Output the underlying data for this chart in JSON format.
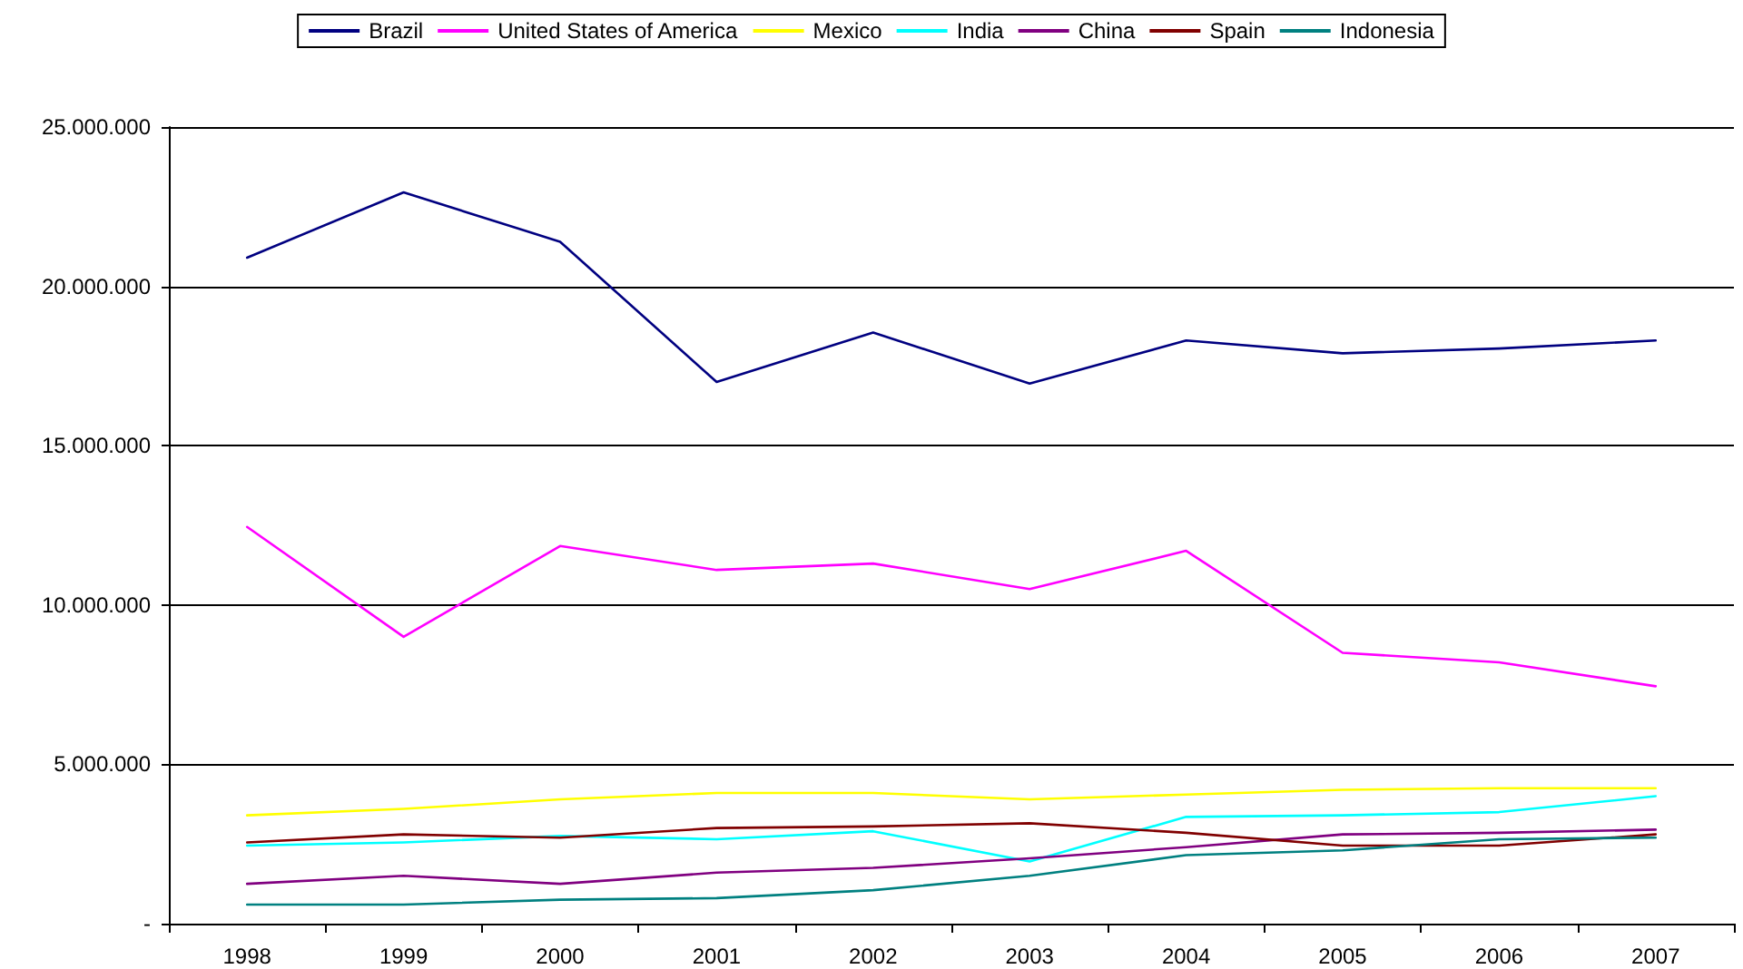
{
  "chart_data": {
    "type": "line",
    "categories": [
      "1998",
      "1999",
      "2000",
      "2001",
      "2002",
      "2003",
      "2004",
      "2005",
      "2006",
      "2007"
    ],
    "series": [
      {
        "name": "Brazil",
        "color": "#000080",
        "values": [
          20900000,
          22950000,
          21400000,
          17000000,
          18550000,
          16950000,
          18300000,
          17900000,
          18050000,
          18300000
        ]
      },
      {
        "name": "United States of America",
        "color": "#ff00ff",
        "values": [
          12450000,
          9000000,
          11850000,
          11100000,
          11300000,
          10500000,
          11700000,
          8500000,
          8200000,
          7450000
        ]
      },
      {
        "name": "Mexico",
        "color": "#ffff00",
        "values": [
          3400000,
          3600000,
          3900000,
          4100000,
          4100000,
          3900000,
          4050000,
          4200000,
          4250000,
          4250000
        ]
      },
      {
        "name": "India",
        "color": "#00ffff",
        "values": [
          2450000,
          2550000,
          2750000,
          2650000,
          2900000,
          1950000,
          3350000,
          3400000,
          3500000,
          4000000
        ]
      },
      {
        "name": "China",
        "color": "#800080",
        "values": [
          1250000,
          1500000,
          1250000,
          1600000,
          1750000,
          2050000,
          2400000,
          2800000,
          2850000,
          2950000
        ]
      },
      {
        "name": "Spain",
        "color": "#800000",
        "values": [
          2550000,
          2800000,
          2700000,
          3000000,
          3050000,
          3150000,
          2850000,
          2450000,
          2450000,
          2800000
        ]
      },
      {
        "name": "Indonesia",
        "color": "#008080",
        "values": [
          600000,
          600000,
          750000,
          800000,
          1050000,
          1500000,
          2150000,
          2300000,
          2650000,
          2700000
        ]
      }
    ],
    "ylim": [
      0,
      25000000
    ],
    "yticks": [
      {
        "value": 0,
        "label": "-"
      },
      {
        "value": 5000000,
        "label": "5.000.000"
      },
      {
        "value": 10000000,
        "label": "10.000.000"
      },
      {
        "value": 15000000,
        "label": "15.000.000"
      },
      {
        "value": 20000000,
        "label": "20.000.000"
      },
      {
        "value": 25000000,
        "label": "25.000.000"
      }
    ],
    "grid": "y",
    "legend": "top",
    "marker": "none",
    "line_style": "solid"
  }
}
